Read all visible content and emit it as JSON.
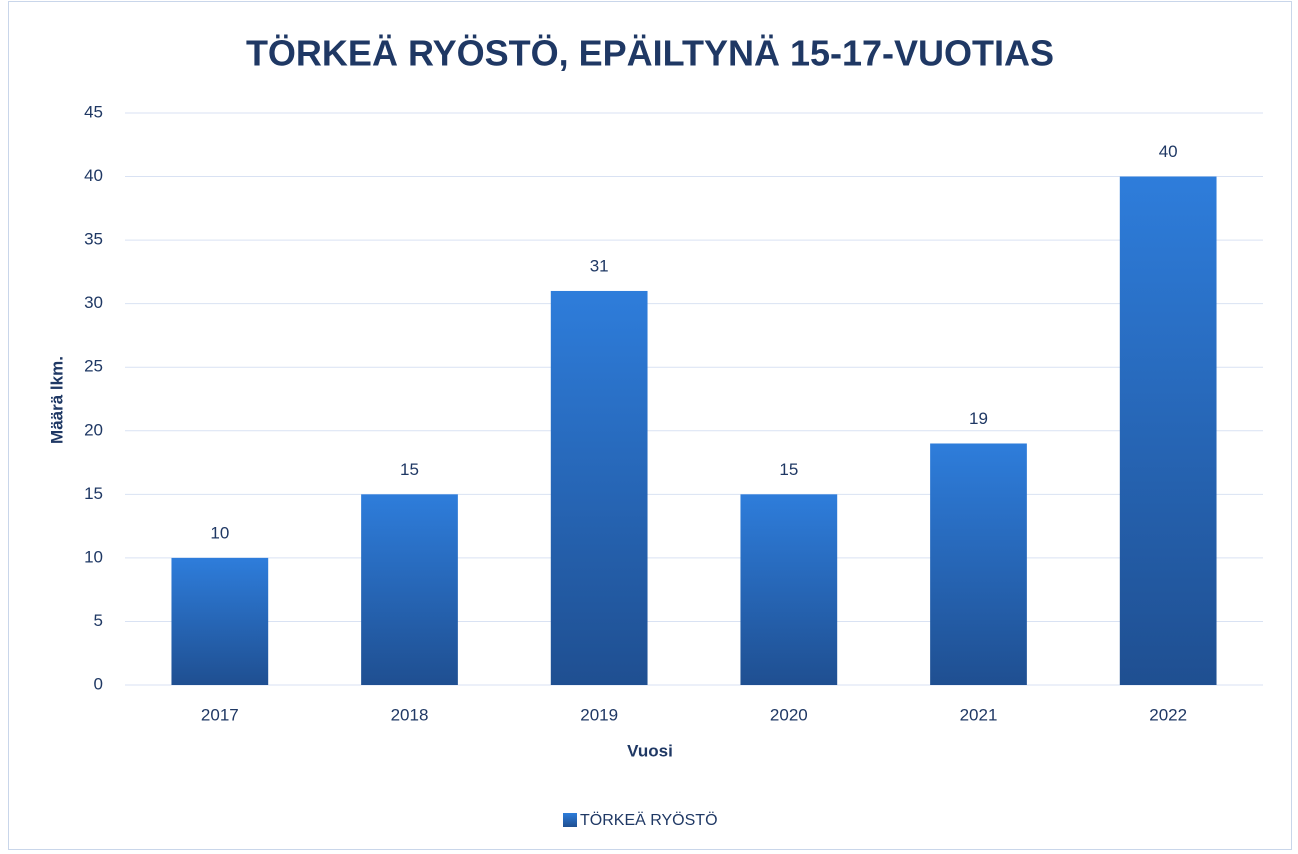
{
  "chart_data": {
    "type": "bar",
    "title": "TÖRKEÄ RYÖSTÖ, EPÄILTYNÄ 15-17-VUOTIAS",
    "x_label": "Vuosi",
    "y_label": "Määrä lkm.",
    "categories": [
      "2017",
      "2018",
      "2019",
      "2020",
      "2021",
      "2022"
    ],
    "series": [
      {
        "name": "TÖRKEÄ RYÖSTÖ",
        "color": "#2e75d6",
        "values": [
          10,
          15,
          31,
          15,
          19,
          40
        ]
      }
    ],
    "ylim": [
      0,
      45
    ],
    "yticks": [
      0,
      5,
      10,
      15,
      20,
      25,
      30,
      35,
      40,
      45
    ],
    "grid": true,
    "legend": "bottom"
  }
}
